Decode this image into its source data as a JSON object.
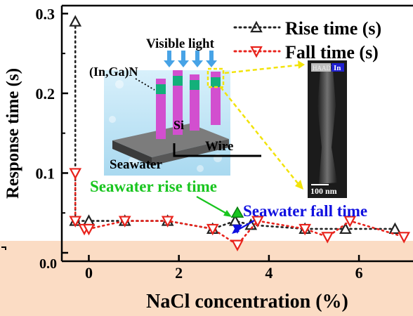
{
  "colors": {
    "rise": "#222222",
    "fall": "#e8231c",
    "seawater_rise": "#19c51f",
    "seawater_fall": "#1010e0",
    "callout": "#f2e30a",
    "inset_bg": "#cfeaf7",
    "rod": "#d24fcf",
    "rod_segment": "#13b07a",
    "peach_band": "#fbdcc4"
  },
  "chart_data": {
    "type": "scatter",
    "xlabel": "NaCl concentration (%)",
    "ylabel": "Response time (s)",
    "xlim": [
      -0.6,
      7.2
    ],
    "ylim": [
      0,
      0.31
    ],
    "x_ticks": [
      0,
      2,
      4,
      6
    ],
    "x_tick_labels": [
      "0",
      "2",
      "4",
      "6"
    ],
    "y_ticks": [
      0,
      0.1,
      0.2,
      0.3
    ],
    "y_tick_labels": [
      "0.0",
      "0.1",
      "0.2",
      "0.3"
    ],
    "legend_position": "top-right",
    "series": [
      {
        "name": "Rise time (s)",
        "marker": "triangle-up",
        "line": "dotted",
        "x": [
          -0.3,
          -0.3,
          0,
          0.8,
          1.75,
          2.75,
          3.25,
          3.6,
          4.8,
          5.7,
          6.8
        ],
        "y": [
          0.29,
          0.04,
          0.04,
          0.04,
          0.04,
          0.03,
          0.04,
          0.035,
          0.03,
          0.03,
          0.03
        ]
      },
      {
        "name": "Fall time (s)",
        "marker": "triangle-down",
        "line": "dotted",
        "x": [
          -0.3,
          -0.3,
          -0.1,
          0,
          0.8,
          1.75,
          2.75,
          3.3,
          3.75,
          4.8,
          5.3,
          5.8,
          7.0
        ],
        "y": [
          0.1,
          0.04,
          0.03,
          0.03,
          0.04,
          0.04,
          0.03,
          0.01,
          0.04,
          0.03,
          0.02,
          0.04,
          0.02
        ]
      }
    ],
    "annotations": [
      {
        "text": "Seawater rise time",
        "x": 3.3,
        "y": 0.05
      },
      {
        "text": "Seawater fall time",
        "x": 3.3,
        "y": 0.03
      }
    ]
  },
  "inset": {
    "labels": {
      "visible_light": "Visible light",
      "ingan": "(In,Ga)N",
      "si": "Si",
      "wire": "Wire",
      "seawater": "Seawater"
    },
    "micrograph": {
      "legend_tag": "HAADF",
      "element_tag": "In",
      "scale_bar": "100 nm"
    }
  },
  "visible_edge_marks": {
    "x_zero_overlap": "0.0"
  }
}
